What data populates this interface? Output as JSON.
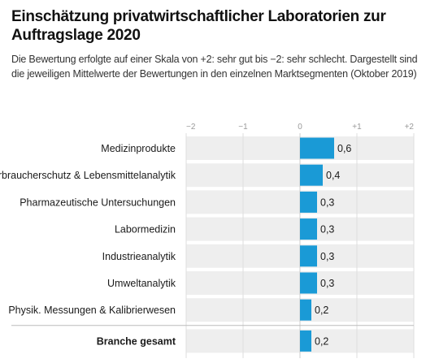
{
  "title": "Einschätzung privatwirtschaftlicher Laboratorien zur Auftragslage 2020",
  "subtitle": "Die Bewertung erfolgte auf einer Skala von +2: sehr gut bis −2: sehr schlecht. Dargestellt sind die jeweiligen Mittelwerte der Bewertungen in den einzelnen Marktsegmenten (Oktober 2019)",
  "colors": {
    "bar": "#1a9ad6",
    "row_bg": "#eeeeee",
    "grid": "#dddddd",
    "axis": "#cccccc",
    "separator": "#bbbbbb"
  },
  "chart_data": {
    "type": "bar",
    "orientation": "horizontal",
    "categories": [
      "Medizinprodukte",
      "Verbraucherschutz & Lebensmittelanalytik",
      "Pharmazeutische Untersuchungen",
      "Labormedizin",
      "Industrieanalytik",
      "Umweltanalytik",
      "Physik. Messungen & Kalibrierwesen",
      "Branche gesamt"
    ],
    "values": [
      0.6,
      0.4,
      0.3,
      0.3,
      0.3,
      0.3,
      0.2,
      0.2
    ],
    "value_labels": [
      "0,6",
      "0,4",
      "0,3",
      "0,3",
      "0,3",
      "0,3",
      "0,2",
      "0,2"
    ],
    "xlim": [
      -2,
      2
    ],
    "ticks": [
      -2,
      -1,
      0,
      1,
      2
    ],
    "tick_labels": [
      "−2",
      "−1",
      "0",
      "+1",
      "+2"
    ],
    "highlight_category": "Branche gesamt",
    "grid": true,
    "legend": "none"
  }
}
